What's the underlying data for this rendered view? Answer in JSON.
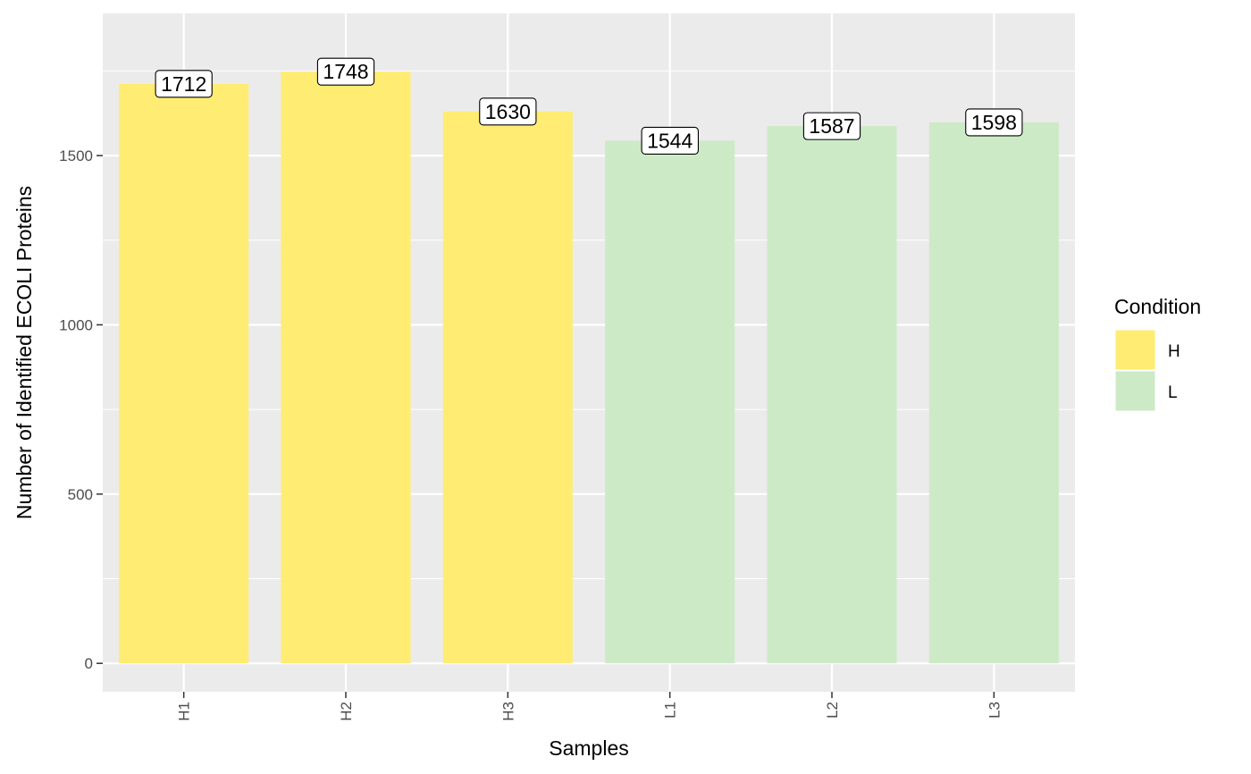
{
  "chart_data": {
    "type": "bar",
    "categories": [
      "H1",
      "H2",
      "H3",
      "L1",
      "L2",
      "L3"
    ],
    "values": [
      1712,
      1748,
      1630,
      1544,
      1587,
      1598
    ],
    "groups": [
      "H",
      "H",
      "H",
      "L",
      "L",
      "L"
    ],
    "data_labels": [
      "1712",
      "1748",
      "1630",
      "1544",
      "1587",
      "1598"
    ],
    "xlabel": "Samples",
    "ylabel": "Number of Identified ECOLI Proteins",
    "ylim": [
      -84,
      1920
    ],
    "yticks": [
      0,
      500,
      1000,
      1500
    ],
    "ytick_labels": [
      "0",
      "500",
      "1000",
      "1500"
    ],
    "grid": true,
    "legend": {
      "title": "Condition",
      "placement": "right",
      "items": [
        {
          "label": "H",
          "color": "#FFEC73"
        },
        {
          "label": "L",
          "color": "#CDEAC7"
        }
      ]
    },
    "colors": {
      "panel_background": "#EBEBEB",
      "grid_line": "#FFFFFF",
      "H": "#FFEC73",
      "L": "#CDEAC7"
    }
  }
}
